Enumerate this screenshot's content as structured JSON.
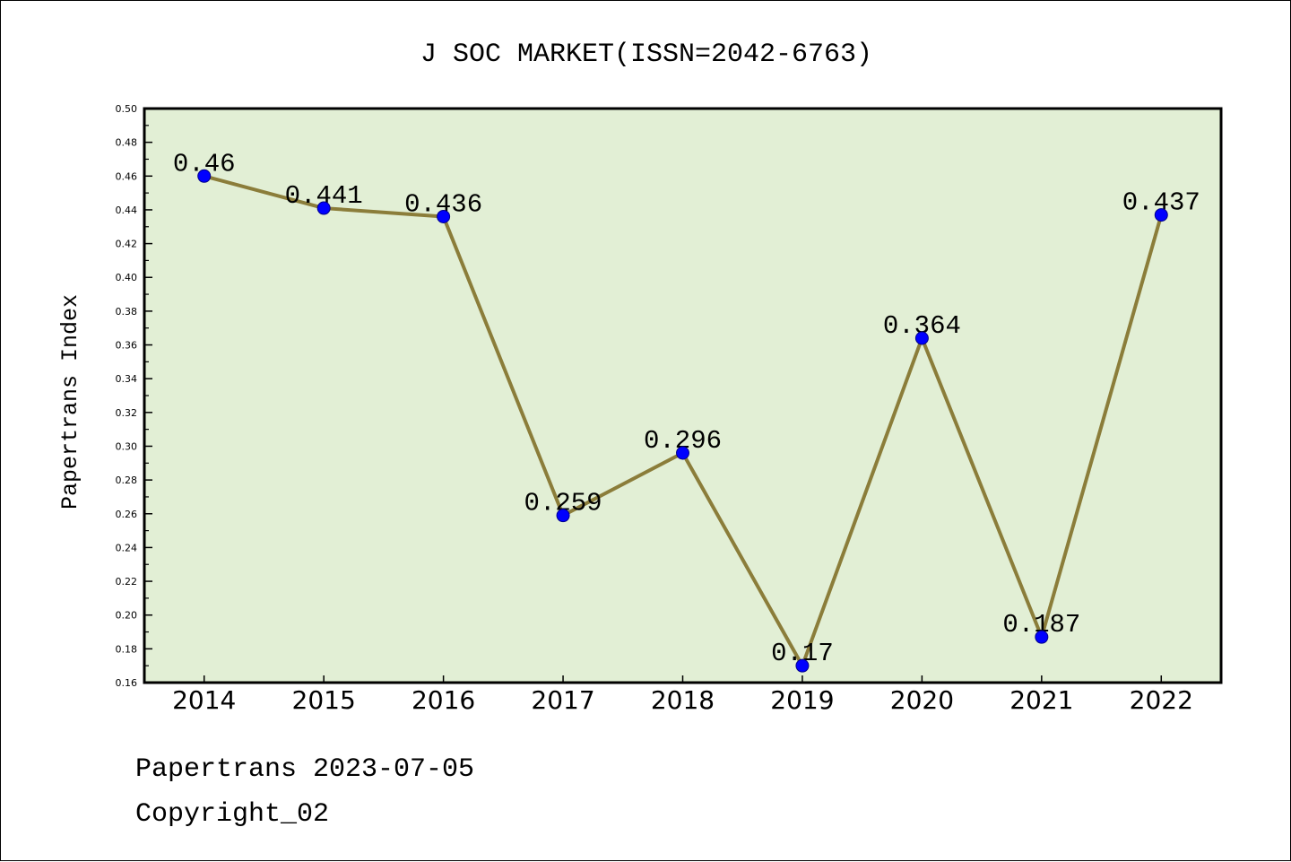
{
  "chart_data": {
    "type": "line",
    "title": "J SOC MARKET(ISSN=2042-6763)",
    "xlabel": "",
    "ylabel": "Papertrans Index",
    "categories": [
      "2014",
      "2015",
      "2016",
      "2017",
      "2018",
      "2019",
      "2020",
      "2021",
      "2022"
    ],
    "series": [
      {
        "values": [
          0.46,
          0.441,
          0.436,
          0.259,
          0.296,
          0.17,
          0.364,
          0.187,
          0.437
        ],
        "data_labels_shown": true
      }
    ],
    "ylim": [
      0.16,
      0.5
    ],
    "yticks": [
      "0.16",
      "0.18",
      "0.20",
      "0.22",
      "0.24",
      "0.26",
      "0.28",
      "0.30",
      "0.32",
      "0.34",
      "0.36",
      "0.38",
      "0.40",
      "0.42",
      "0.44",
      "0.46",
      "0.48",
      "0.50"
    ],
    "grid": false,
    "legend": "none",
    "colors": {
      "line": "#8b7d3a",
      "marker_fill": "#0000ff",
      "marker_edge": "#00008b",
      "plot_background": "#e2efd5",
      "page_background": "#ffffff"
    }
  },
  "footer": {
    "source": "Papertrans 2023-07-05",
    "copyright": "Copyright_02"
  }
}
